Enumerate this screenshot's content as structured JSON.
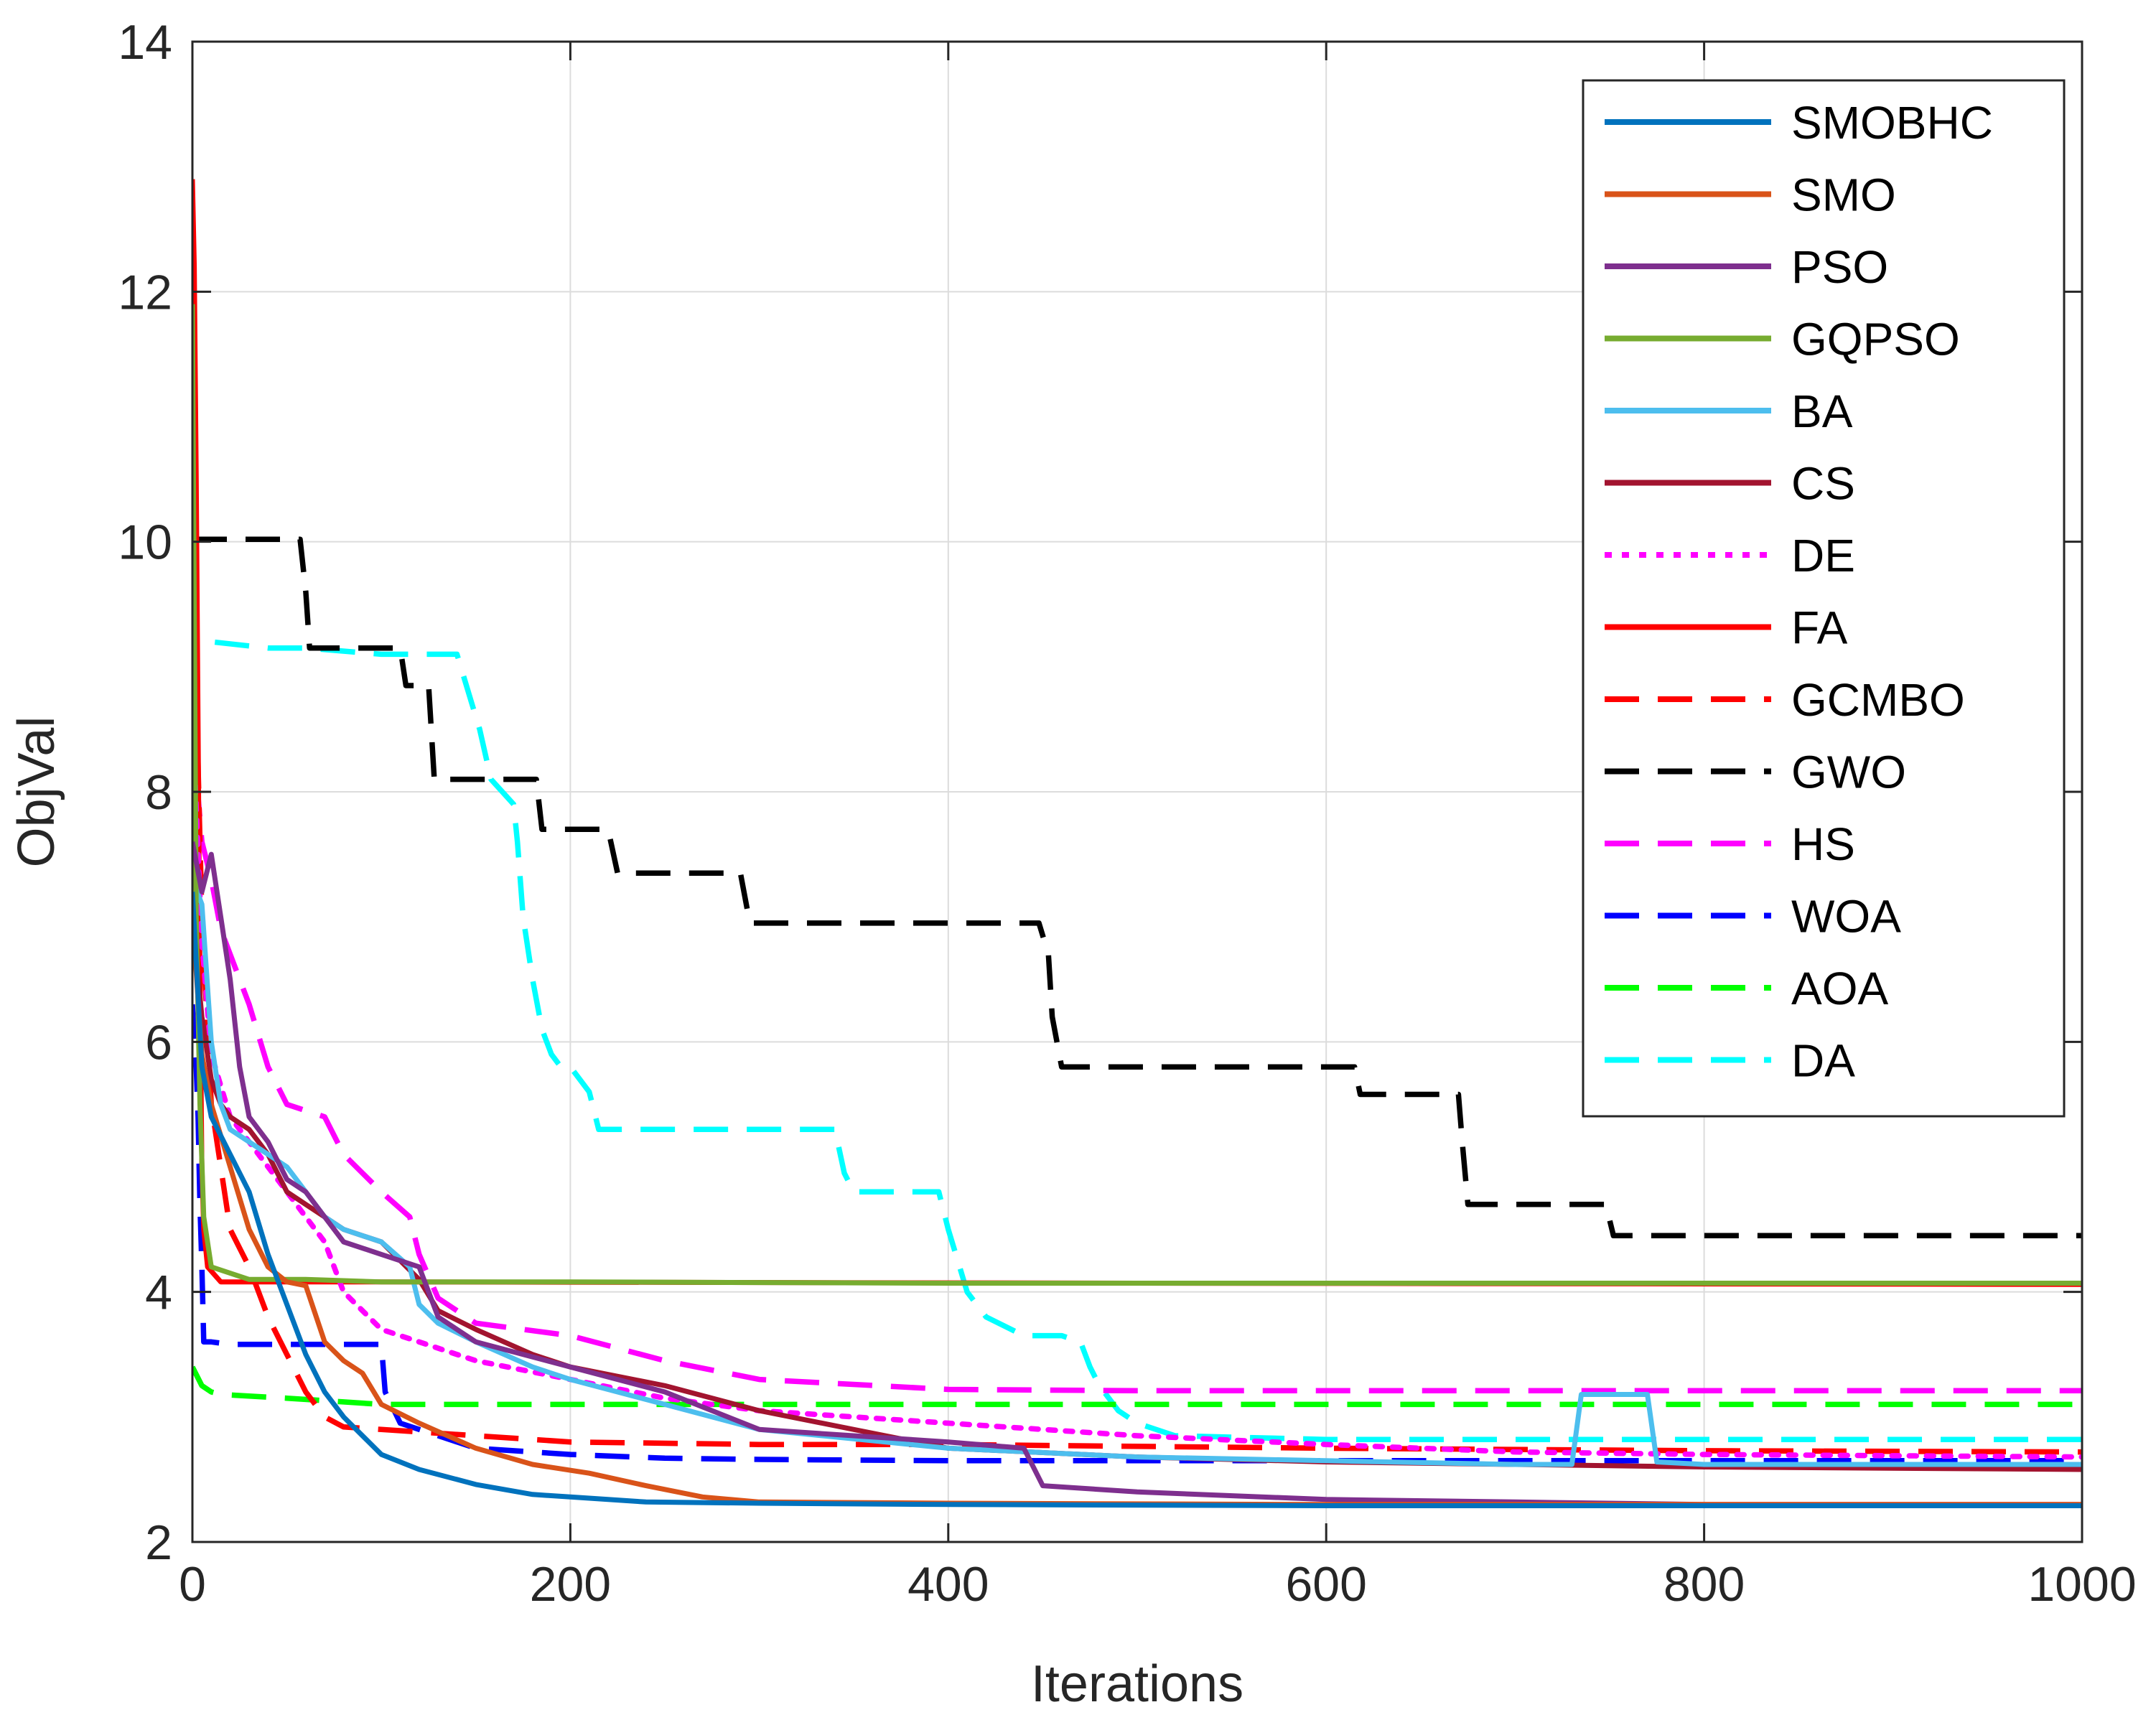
{
  "chart_data": {
    "type": "line",
    "title": "",
    "xlabel": "Iterations",
    "ylabel": "ObjVal",
    "xlim": [
      0,
      1000
    ],
    "ylim": [
      2,
      14
    ],
    "xticks": [
      "0",
      "200",
      "400",
      "600",
      "800",
      "1000"
    ],
    "yticks": [
      "2",
      "4",
      "6",
      "8",
      "10",
      "12",
      "14"
    ],
    "grid": true,
    "legend_position": "top-right",
    "series": [
      {
        "name": "SMOBHC",
        "color": "#0072BD",
        "dash": "solid",
        "x": [
          0,
          5,
          10,
          20,
          30,
          40,
          50,
          60,
          70,
          80,
          90,
          100,
          120,
          150,
          180,
          210,
          240,
          300,
          400,
          600,
          800,
          1000
        ],
        "y": [
          7.2,
          5.8,
          5.4,
          5.1,
          4.8,
          4.3,
          3.9,
          3.5,
          3.2,
          3.0,
          2.85,
          2.7,
          2.58,
          2.46,
          2.38,
          2.35,
          2.32,
          2.31,
          2.3,
          2.29,
          2.29,
          2.29
        ]
      },
      {
        "name": "SMO",
        "color": "#D95319",
        "dash": "solid",
        "x": [
          0,
          5,
          10,
          20,
          30,
          40,
          50,
          60,
          70,
          80,
          90,
          100,
          120,
          150,
          180,
          210,
          240,
          270,
          300,
          400,
          600,
          800,
          1000
        ],
        "y": [
          7.0,
          5.9,
          5.5,
          5.0,
          4.5,
          4.2,
          4.08,
          4.05,
          3.6,
          3.45,
          3.35,
          3.1,
          2.95,
          2.75,
          2.62,
          2.55,
          2.45,
          2.36,
          2.32,
          2.31,
          2.3,
          2.3,
          2.3
        ]
      },
      {
        "name": "PSO",
        "color": "#7E2F8E",
        "dash": "solid",
        "x": [
          0,
          5,
          10,
          15,
          20,
          25,
          30,
          40,
          50,
          60,
          70,
          80,
          100,
          120,
          130,
          150,
          200,
          250,
          300,
          400,
          440,
          450,
          500,
          600,
          700,
          800,
          1000
        ],
        "y": [
          7.6,
          7.2,
          7.5,
          7.0,
          6.5,
          5.8,
          5.4,
          5.2,
          4.9,
          4.8,
          4.6,
          4.4,
          4.3,
          4.2,
          3.8,
          3.6,
          3.4,
          3.2,
          2.9,
          2.8,
          2.75,
          2.45,
          2.4,
          2.34,
          2.32,
          2.3,
          2.3
        ]
      },
      {
        "name": "GQPSO",
        "color": "#77AC30",
        "dash": "solid",
        "x": [
          0,
          1,
          2,
          4,
          6,
          10,
          30,
          60,
          100,
          200,
          400,
          600,
          800,
          1000
        ],
        "y": [
          11.9,
          9.5,
          7.0,
          5.5,
          4.6,
          4.2,
          4.1,
          4.1,
          4.08,
          4.08,
          4.07,
          4.07,
          4.07,
          4.07
        ]
      },
      {
        "name": "BA",
        "color": "#4DBEEE",
        "dash": "solid",
        "x": [
          0,
          5,
          10,
          15,
          20,
          30,
          40,
          50,
          60,
          70,
          80,
          100,
          115,
          120,
          130,
          150,
          180,
          200,
          250,
          300,
          400,
          500,
          600,
          700,
          730,
          735,
          770,
          775,
          800,
          1000
        ],
        "y": [
          7.3,
          7.1,
          6.0,
          5.5,
          5.3,
          5.2,
          5.1,
          5.0,
          4.8,
          4.6,
          4.5,
          4.4,
          4.2,
          3.9,
          3.75,
          3.6,
          3.4,
          3.3,
          3.1,
          2.9,
          2.75,
          2.68,
          2.65,
          2.62,
          2.62,
          3.18,
          3.18,
          2.64,
          2.62,
          2.62
        ]
      },
      {
        "name": "CS",
        "color": "#A2142F",
        "dash": "solid",
        "x": [
          0,
          5,
          10,
          15,
          20,
          30,
          40,
          50,
          60,
          70,
          80,
          100,
          120,
          130,
          150,
          180,
          200,
          250,
          300,
          350,
          400,
          500,
          600,
          800,
          1000
        ],
        "y": [
          7.0,
          6.2,
          5.7,
          5.5,
          5.4,
          5.3,
          5.1,
          4.8,
          4.7,
          4.6,
          4.5,
          4.4,
          4.1,
          3.85,
          3.7,
          3.5,
          3.4,
          3.25,
          3.05,
          2.9,
          2.75,
          2.68,
          2.64,
          2.6,
          2.58
        ]
      },
      {
        "name": "DE",
        "color": "#FF00FF",
        "dash": "dotted",
        "x": [
          0,
          5,
          10,
          20,
          30,
          40,
          50,
          60,
          70,
          80,
          100,
          120,
          150,
          200,
          250,
          300,
          400,
          500,
          600,
          700,
          800,
          1000
        ],
        "y": [
          8.6,
          6.8,
          5.9,
          5.4,
          5.2,
          5.0,
          4.8,
          4.6,
          4.4,
          4.0,
          3.7,
          3.6,
          3.45,
          3.3,
          3.15,
          3.05,
          2.95,
          2.85,
          2.78,
          2.72,
          2.7,
          2.68
        ]
      },
      {
        "name": "FA",
        "color": "#FF0000",
        "dash": "solid",
        "x": [
          0,
          1,
          2,
          3,
          4,
          5,
          6,
          8,
          15,
          100,
          500,
          1000
        ],
        "y": [
          12.9,
          12.2,
          10.5,
          8.5,
          6.5,
          5.0,
          4.5,
          4.2,
          4.08,
          4.08,
          4.07,
          4.06
        ]
      },
      {
        "name": "GCMBO",
        "color": "#FF0000",
        "dash": "dashed",
        "x": [
          0,
          5,
          10,
          20,
          30,
          40,
          50,
          60,
          70,
          80,
          100,
          150,
          200,
          300,
          400,
          600,
          800,
          1000
        ],
        "y": [
          10.0,
          7.0,
          5.5,
          4.5,
          4.2,
          3.8,
          3.5,
          3.2,
          3.0,
          2.92,
          2.9,
          2.85,
          2.8,
          2.78,
          2.78,
          2.75,
          2.73,
          2.72
        ]
      },
      {
        "name": "GWO",
        "color": "#000000",
        "dash": "dashed",
        "x": [
          0,
          57,
          60,
          62,
          110,
          113,
          125,
          128,
          182,
          185,
          220,
          225,
          290,
          295,
          448,
          453,
          455,
          460,
          615,
          618,
          670,
          672,
          675,
          748,
          752,
          1000
        ],
        "y": [
          10.02,
          10.02,
          9.6,
          9.15,
          9.15,
          8.85,
          8.85,
          8.1,
          8.1,
          7.7,
          7.7,
          7.35,
          7.35,
          6.95,
          6.95,
          6.7,
          6.2,
          5.8,
          5.8,
          5.58,
          5.58,
          5.2,
          4.7,
          4.7,
          4.45,
          4.45
        ]
      },
      {
        "name": "HS",
        "color": "#FF00FF",
        "dash": "dashed",
        "x": [
          0,
          5,
          10,
          15,
          20,
          25,
          30,
          40,
          50,
          60,
          70,
          80,
          100,
          115,
          120,
          130,
          150,
          200,
          250,
          300,
          400,
          500,
          1000
        ],
        "y": [
          8.5,
          7.6,
          7.3,
          6.9,
          6.7,
          6.5,
          6.3,
          5.8,
          5.5,
          5.45,
          5.4,
          5.1,
          4.8,
          4.6,
          4.3,
          3.95,
          3.75,
          3.65,
          3.45,
          3.3,
          3.22,
          3.21,
          3.21
        ]
      },
      {
        "name": "WOA",
        "color": "#0000FF",
        "dash": "dashed",
        "x": [
          0,
          2,
          3,
          4,
          5,
          6,
          10,
          20,
          30,
          40,
          50,
          60,
          80,
          100,
          102,
          110,
          150,
          200,
          250,
          300,
          400,
          600,
          800,
          1000
        ],
        "y": [
          6.3,
          5.8,
          5.4,
          4.7,
          4.2,
          3.6,
          3.6,
          3.58,
          3.58,
          3.58,
          3.58,
          3.58,
          3.58,
          3.58,
          3.2,
          2.95,
          2.75,
          2.7,
          2.67,
          2.66,
          2.65,
          2.65,
          2.65,
          2.65
        ]
      },
      {
        "name": "AOA",
        "color": "#00FF00",
        "dash": "dashed",
        "x": [
          0,
          5,
          10,
          15,
          50,
          80,
          100,
          1000
        ],
        "y": [
          3.4,
          3.25,
          3.2,
          3.18,
          3.15,
          3.12,
          3.1,
          3.1
        ]
      },
      {
        "name": "DA",
        "color": "#00FFFF",
        "dash": "dashed",
        "x": [
          0,
          2,
          3,
          5,
          10,
          40,
          60,
          100,
          140,
          148,
          152,
          158,
          170,
          172,
          175,
          180,
          185,
          190,
          195,
          200,
          210,
          215,
          220,
          340,
          345,
          350,
          395,
          400,
          405,
          410,
          420,
          440,
          460,
          470,
          475,
          480,
          485,
          490,
          500,
          520,
          600,
          800,
          1000
        ],
        "y": [
          8.5,
          9.2,
          9.2,
          9.2,
          9.2,
          9.15,
          9.15,
          9.1,
          9.1,
          8.7,
          8.5,
          8.1,
          7.9,
          7.6,
          7.0,
          6.5,
          6.1,
          5.9,
          5.8,
          5.8,
          5.6,
          5.3,
          5.3,
          5.3,
          4.95,
          4.8,
          4.8,
          4.5,
          4.25,
          4.0,
          3.8,
          3.65,
          3.65,
          3.6,
          3.4,
          3.25,
          3.15,
          3.05,
          2.95,
          2.85,
          2.82,
          2.82,
          2.82
        ]
      }
    ]
  }
}
